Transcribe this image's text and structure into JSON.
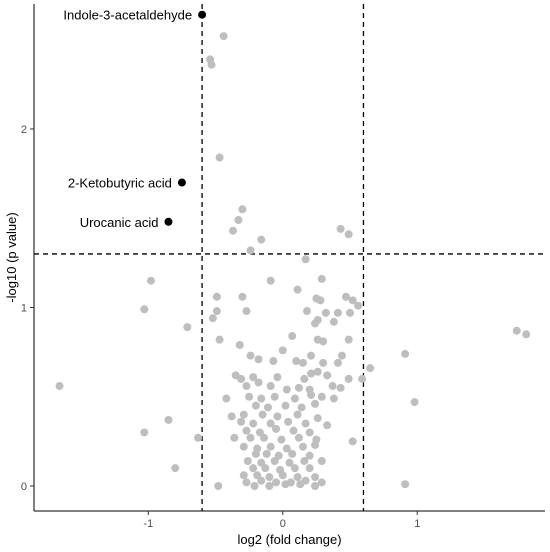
{
  "chart_data": {
    "type": "scatter",
    "title": "",
    "xlabel": "log2 (fold change)",
    "ylabel": "-log10 (p value)",
    "xlim": [
      -1.85,
      1.95
    ],
    "ylim": [
      -0.14,
      2.7
    ],
    "x_ticks": [
      {
        "value": -1,
        "label": "-1"
      },
      {
        "value": 0,
        "label": "0"
      },
      {
        "value": 1,
        "label": "1"
      }
    ],
    "y_ticks": [
      {
        "value": 0,
        "label": "0"
      },
      {
        "value": 1,
        "label": "1"
      },
      {
        "value": 2,
        "label": "2"
      }
    ],
    "grid": false,
    "thresholds": {
      "x": [
        -0.6,
        0.6
      ],
      "y": 1.3
    },
    "colors": {
      "significant": "#000000",
      "other": "#bebebe",
      "threshold": "#000000"
    },
    "highlighted": [
      {
        "name": "Indole-3-acetaldehyde",
        "x": -0.6,
        "y": 2.64
      },
      {
        "name": "2-Ketobutyric acid",
        "x": -0.75,
        "y": 1.7
      },
      {
        "name": "Urocanic acid",
        "x": -0.85,
        "y": 1.48
      }
    ],
    "points": [
      [
        -0.44,
        2.52
      ],
      [
        -0.54,
        2.39
      ],
      [
        -0.53,
        2.36
      ],
      [
        -0.47,
        1.84
      ],
      [
        -0.3,
        1.55
      ],
      [
        -0.33,
        1.49
      ],
      [
        -0.37,
        1.43
      ],
      [
        -0.16,
        1.38
      ],
      [
        0.43,
        1.44
      ],
      [
        0.49,
        1.41
      ],
      [
        -0.24,
        1.32
      ],
      [
        0.17,
        1.27
      ],
      [
        -0.98,
        1.15
      ],
      [
        -0.09,
        1.15
      ],
      [
        0.29,
        1.16
      ],
      [
        0.11,
        1.1
      ],
      [
        -0.49,
        1.06
      ],
      [
        -0.3,
        1.06
      ],
      [
        0.25,
        1.05
      ],
      [
        0.28,
        1.04
      ],
      [
        0.47,
        1.06
      ],
      [
        0.52,
        1.04
      ],
      [
        0.56,
        1.01
      ],
      [
        -0.49,
        0.98
      ],
      [
        -0.27,
        0.98
      ],
      [
        0.18,
        0.98
      ],
      [
        0.32,
        0.97
      ],
      [
        0.41,
        0.97
      ],
      [
        0.5,
        0.97
      ],
      [
        -1.03,
        0.99
      ],
      [
        -0.52,
        0.94
      ],
      [
        0.26,
        0.93
      ],
      [
        0.24,
        0.91
      ],
      [
        0.38,
        0.92
      ],
      [
        -0.71,
        0.89
      ],
      [
        -0.47,
        0.82
      ],
      [
        0.07,
        0.84
      ],
      [
        0.26,
        0.82
      ],
      [
        0.3,
        0.81
      ],
      [
        0.49,
        0.82
      ],
      [
        -0.32,
        0.79
      ],
      [
        0.0,
        0.76
      ],
      [
        0.21,
        0.73
      ],
      [
        0.44,
        0.73
      ],
      [
        -0.24,
        0.73
      ],
      [
        -0.18,
        0.71
      ],
      [
        -0.07,
        0.7
      ],
      [
        0.1,
        0.7
      ],
      [
        0.15,
        0.69
      ],
      [
        0.3,
        0.69
      ],
      [
        0.41,
        0.69
      ],
      [
        -0.35,
        0.62
      ],
      [
        -0.31,
        0.6
      ],
      [
        -0.22,
        0.61
      ],
      [
        -0.04,
        0.61
      ],
      [
        0.16,
        0.6
      ],
      [
        0.21,
        0.63
      ],
      [
        0.26,
        0.64
      ],
      [
        0.33,
        0.62
      ],
      [
        0.49,
        0.6
      ],
      [
        0.59,
        0.6
      ],
      [
        -0.27,
        0.56
      ],
      [
        -0.18,
        0.58
      ],
      [
        -0.09,
        0.56
      ],
      [
        0.03,
        0.54
      ],
      [
        0.12,
        0.55
      ],
      [
        0.2,
        0.54
      ],
      [
        0.37,
        0.56
      ],
      [
        0.43,
        0.55
      ],
      [
        -0.25,
        0.5
      ],
      [
        -0.16,
        0.49
      ],
      [
        -0.06,
        0.5
      ],
      [
        0.09,
        0.49
      ],
      [
        0.21,
        0.51
      ],
      [
        0.29,
        0.5
      ],
      [
        0.38,
        0.49
      ],
      [
        -0.2,
        0.45
      ],
      [
        -0.11,
        0.44
      ],
      [
        0.02,
        0.45
      ],
      [
        0.14,
        0.44
      ],
      [
        0.24,
        0.46
      ],
      [
        -0.38,
        0.39
      ],
      [
        -0.29,
        0.4
      ],
      [
        -0.15,
        0.4
      ],
      [
        -0.04,
        0.39
      ],
      [
        0.11,
        0.4
      ],
      [
        0.26,
        0.38
      ],
      [
        -0.31,
        0.36
      ],
      [
        -0.22,
        0.35
      ],
      [
        -0.09,
        0.35
      ],
      [
        0.04,
        0.36
      ],
      [
        0.17,
        0.35
      ],
      [
        0.33,
        0.34
      ],
      [
        -0.27,
        0.31
      ],
      [
        -0.17,
        0.3
      ],
      [
        -0.05,
        0.32
      ],
      [
        0.08,
        0.31
      ],
      [
        0.2,
        0.3
      ],
      [
        -0.36,
        0.27
      ],
      [
        -0.24,
        0.27
      ],
      [
        -0.14,
        0.27
      ],
      [
        -0.01,
        0.26
      ],
      [
        0.12,
        0.27
      ],
      [
        0.25,
        0.26
      ],
      [
        0.52,
        0.25
      ],
      [
        -0.29,
        0.22
      ],
      [
        -0.19,
        0.21
      ],
      [
        -0.09,
        0.22
      ],
      [
        0.03,
        0.21
      ],
      [
        0.15,
        0.22
      ],
      [
        0.24,
        0.23
      ],
      [
        -0.2,
        0.18
      ],
      [
        -0.12,
        0.18
      ],
      [
        -0.03,
        0.17
      ],
      [
        0.07,
        0.18
      ],
      [
        0.2,
        0.17
      ],
      [
        -0.26,
        0.14
      ],
      [
        -0.16,
        0.13
      ],
      [
        -0.06,
        0.14
      ],
      [
        0.05,
        0.13
      ],
      [
        0.16,
        0.14
      ],
      [
        0.29,
        0.14
      ],
      [
        -0.22,
        0.1
      ],
      [
        -0.13,
        0.1
      ],
      [
        -0.02,
        0.09
      ],
      [
        0.09,
        0.1
      ],
      [
        0.2,
        0.1
      ],
      [
        -0.29,
        0.06
      ],
      [
        -0.19,
        0.06
      ],
      [
        -0.1,
        0.05
      ],
      [
        0.0,
        0.06
      ],
      [
        0.11,
        0.05
      ],
      [
        0.24,
        0.05
      ],
      [
        -0.27,
        0.02
      ],
      [
        -0.16,
        0.03
      ],
      [
        -0.05,
        0.02
      ],
      [
        0.06,
        0.02
      ],
      [
        0.17,
        0.03
      ],
      [
        0.29,
        0.02
      ],
      [
        -0.21,
        0.0
      ],
      [
        -0.1,
        0.0
      ],
      [
        0.02,
        0.01
      ],
      [
        0.13,
        0.01
      ],
      [
        0.24,
        0.0
      ],
      [
        -0.48,
        0.0
      ],
      [
        0.65,
        0.66
      ],
      [
        0.91,
        0.74
      ],
      [
        1.74,
        0.87
      ],
      [
        1.81,
        0.85
      ],
      [
        0.98,
        0.47
      ],
      [
        -1.66,
        0.56
      ],
      [
        -1.03,
        0.3
      ],
      [
        -0.8,
        0.1
      ],
      [
        -0.63,
        0.27
      ],
      [
        -0.85,
        0.37
      ],
      [
        0.91,
        0.01
      ],
      [
        -0.42,
        0.49
      ]
    ]
  }
}
